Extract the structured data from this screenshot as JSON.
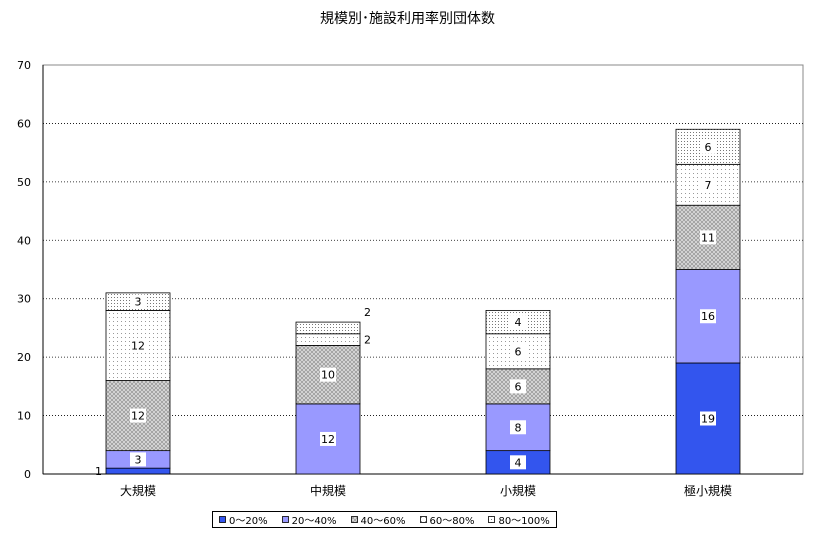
{
  "chart_data": {
    "type": "bar",
    "stacked": true,
    "title": "規模別･施設利用率別団体数",
    "categories": [
      "大規模",
      "中規模",
      "小規模",
      "極小規模"
    ],
    "ylim": [
      0,
      70
    ],
    "yticks": [
      0,
      10,
      20,
      30,
      40,
      50,
      60,
      70
    ],
    "grid": true,
    "legend_position": "bottom",
    "series": [
      {
        "name": "0～20%",
        "values": [
          1,
          0,
          4,
          19
        ],
        "color": "#3355ee",
        "pattern": "solid"
      },
      {
        "name": "20～40%",
        "values": [
          3,
          12,
          8,
          16
        ],
        "color": "#9999ff",
        "pattern": "solid"
      },
      {
        "name": "40～60%",
        "values": [
          12,
          10,
          6,
          11
        ],
        "color": "#c8c8c8",
        "pattern": "crosshatch"
      },
      {
        "name": "60～80%",
        "values": [
          12,
          2,
          6,
          7
        ],
        "color": "#ffffff",
        "pattern": "sparse-dots"
      },
      {
        "name": "80～100%",
        "values": [
          3,
          2,
          4,
          6
        ],
        "color": "#ffffff",
        "pattern": "dense-dots"
      }
    ]
  }
}
